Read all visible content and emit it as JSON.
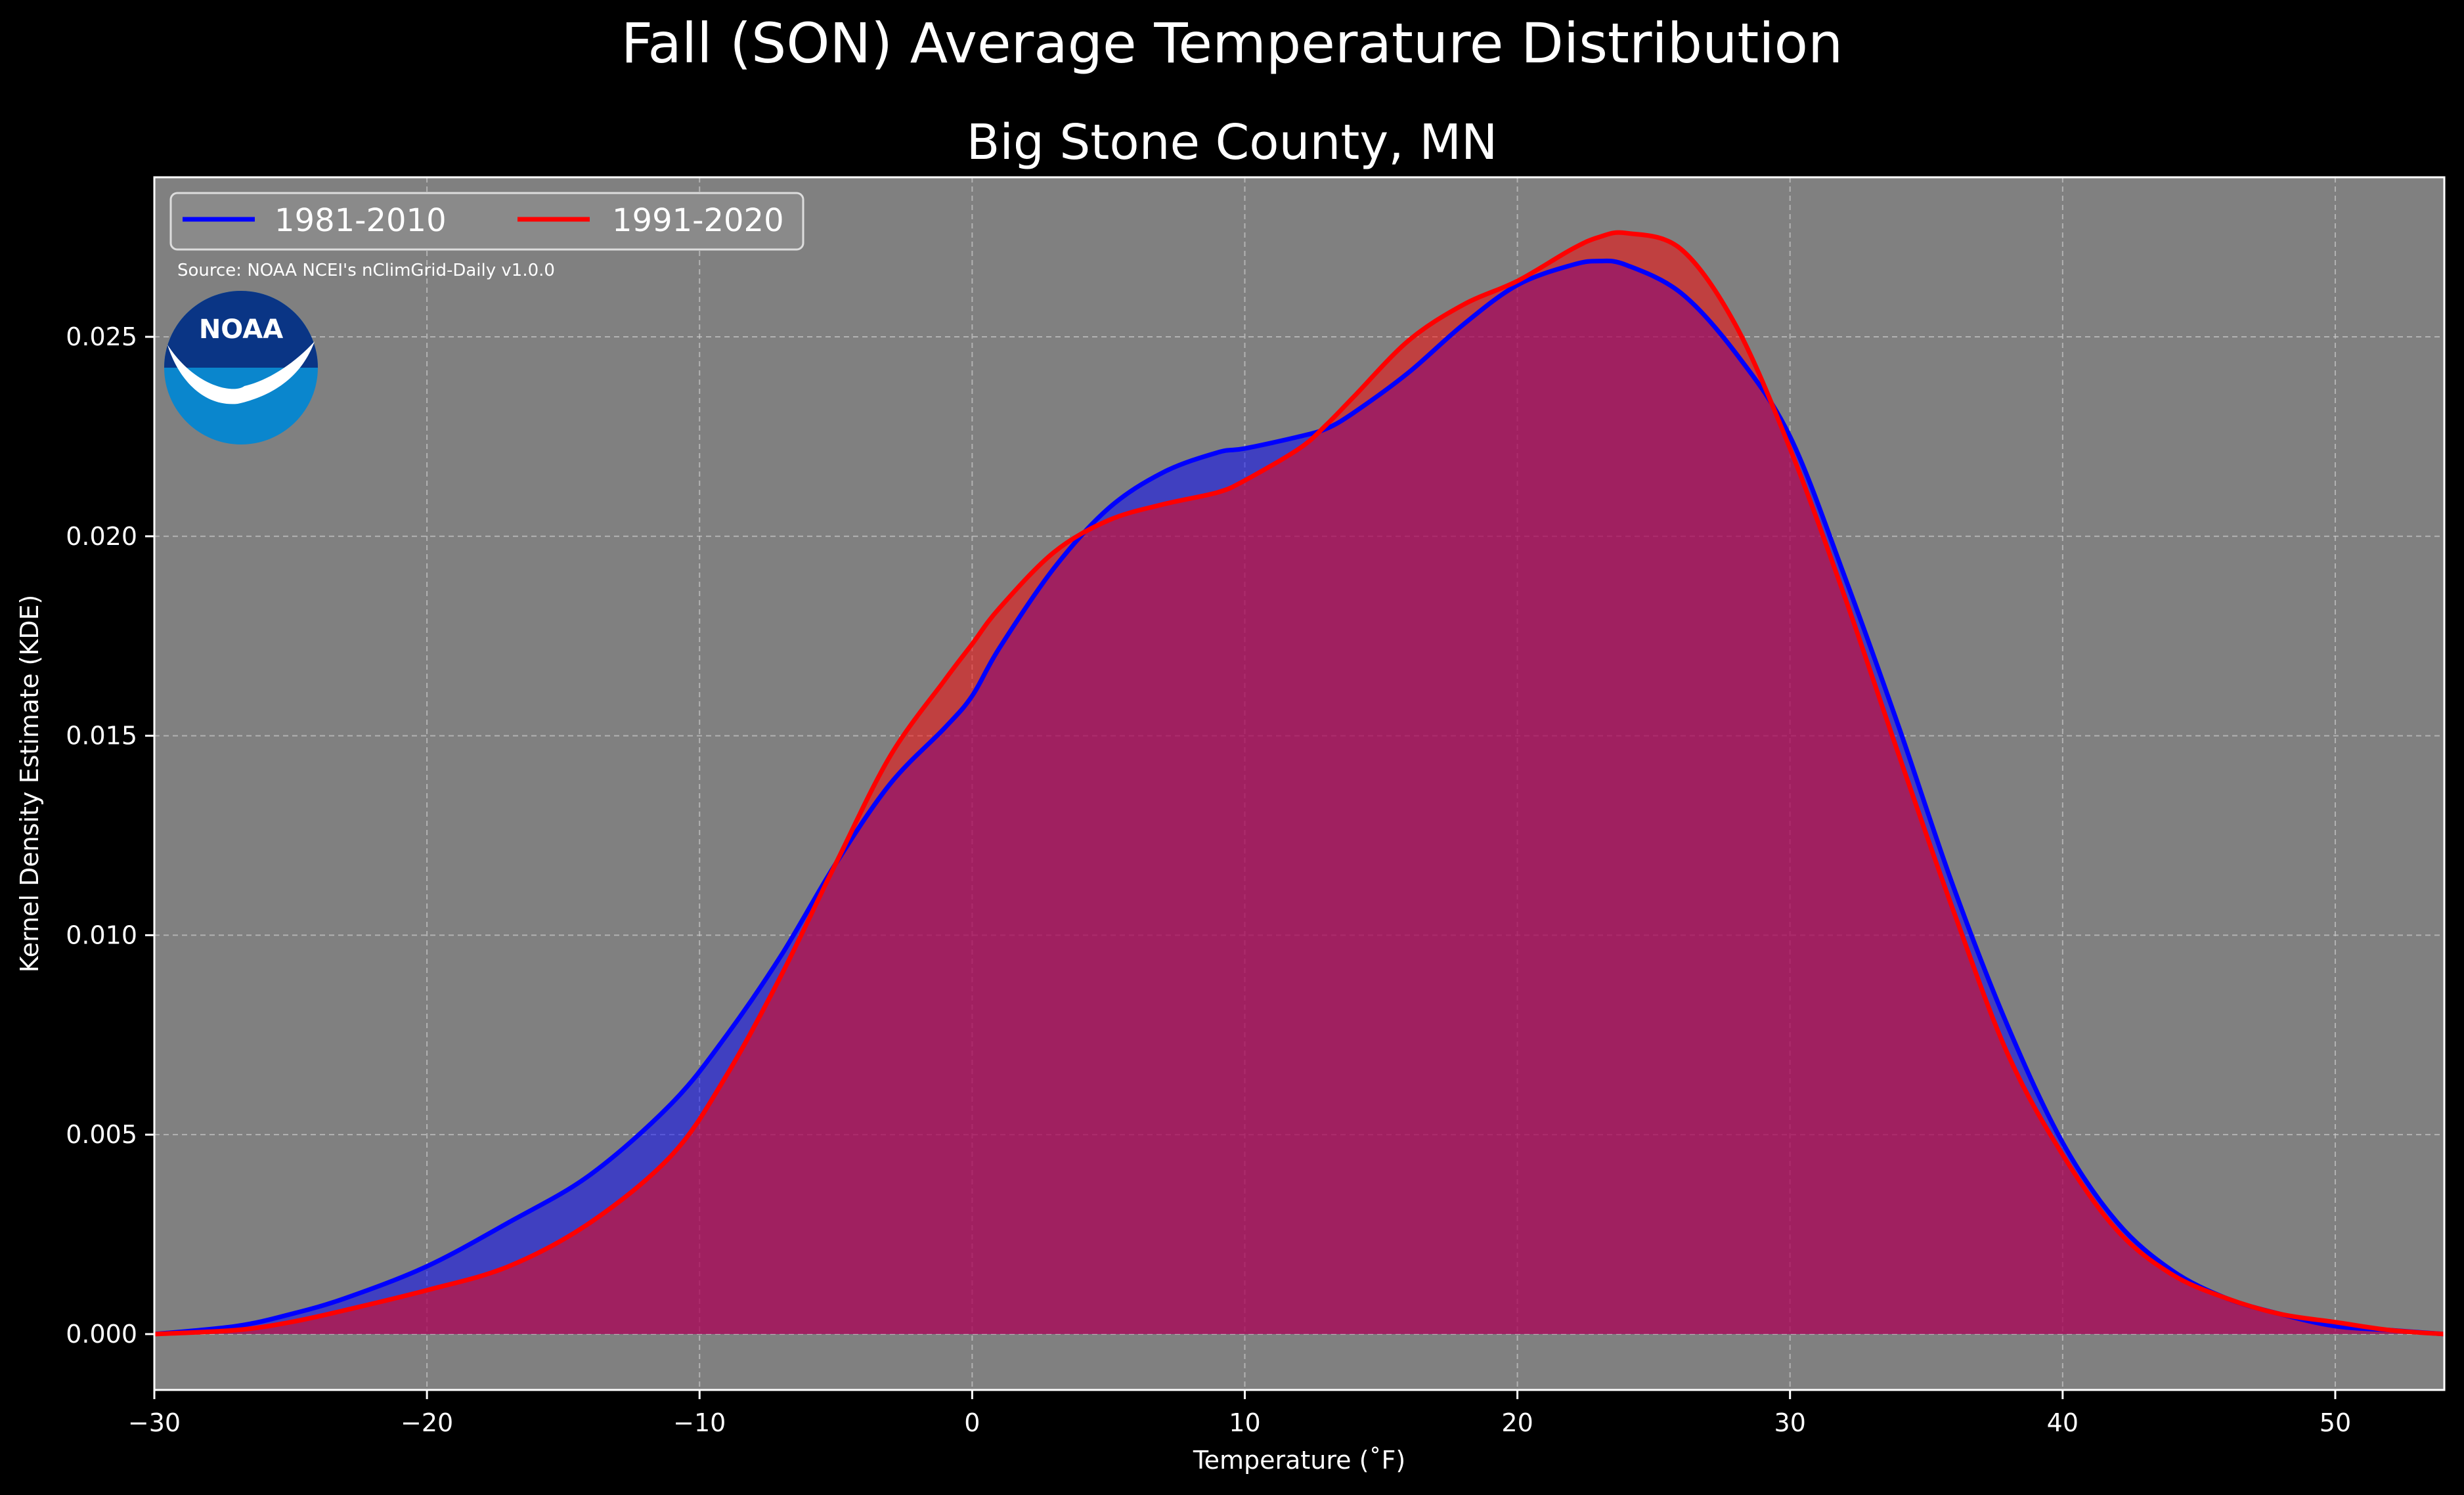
{
  "suptitle": "Fall (SON) Average Temperature Distribution",
  "chart_data": {
    "type": "area",
    "title": "Big Stone County, MN",
    "xlabel": "Temperature (˚F)",
    "ylabel": "Kernel Density Estimate (KDE)",
    "xlim": [
      -30,
      54
    ],
    "ylim": [
      -0.0014,
      0.029
    ],
    "xticks": [
      -30,
      -20,
      -10,
      0,
      10,
      20,
      30,
      40,
      50
    ],
    "xtick_labels": [
      "−30",
      "−20",
      "−10",
      "0",
      "10",
      "20",
      "30",
      "40",
      "50"
    ],
    "yticks": [
      0.0,
      0.005,
      0.01,
      0.015,
      0.02,
      0.025
    ],
    "ytick_labels": [
      "0.000",
      "0.005",
      "0.010",
      "0.015",
      "0.020",
      "0.025"
    ],
    "grid": true,
    "legend_position": "top-left",
    "annotation": "Source: NOAA NCEI's nClimGrid-Daily v1.0.0",
    "logo_text": "NOAA",
    "colors": {
      "figure_bg": "#000000",
      "axes_bg": "#808080",
      "series_1": "#0000ff",
      "series_2": "#ff0000",
      "logo_dark": "#0a3585",
      "logo_light": "#0a86cd"
    },
    "series": [
      {
        "name": "1981-2010",
        "color": "#0000ff",
        "x": [
          -30,
          -27,
          -25,
          -23,
          -20,
          -17,
          -14,
          -11,
          -9,
          -7,
          -5,
          -3,
          -1,
          0,
          1,
          3,
          5,
          7,
          9,
          10,
          12,
          13,
          14,
          16,
          18,
          20,
          22,
          23,
          24,
          26,
          28,
          30,
          32,
          34,
          36,
          38,
          40,
          42,
          44,
          46,
          48,
          50,
          52,
          54
        ],
        "y": [
          0.0,
          0.0002,
          0.0005,
          0.0009,
          0.0017,
          0.0028,
          0.004,
          0.0058,
          0.0075,
          0.0095,
          0.0118,
          0.0138,
          0.0152,
          0.016,
          0.0172,
          0.0192,
          0.0207,
          0.0216,
          0.0221,
          0.0222,
          0.0225,
          0.0227,
          0.0231,
          0.0241,
          0.0253,
          0.0263,
          0.0268,
          0.0269,
          0.0268,
          0.0261,
          0.0246,
          0.0225,
          0.019,
          0.0152,
          0.0112,
          0.0077,
          0.0048,
          0.0028,
          0.0016,
          0.0009,
          0.0005,
          0.0002,
          0.0001,
          0.0
        ]
      },
      {
        "name": "1991-2020",
        "color": "#ff0000",
        "x": [
          -30,
          -27,
          -25,
          -23,
          -20,
          -17,
          -14,
          -11,
          -9,
          -7,
          -5,
          -3,
          -1,
          0,
          1,
          3,
          5,
          7,
          9,
          10,
          12,
          13,
          14,
          16,
          18,
          20,
          22,
          23,
          24,
          26,
          28,
          30,
          32,
          34,
          36,
          38,
          40,
          42,
          44,
          46,
          48,
          50,
          52,
          54
        ],
        "y": [
          0.0,
          0.0001,
          0.0003,
          0.0006,
          0.0011,
          0.0017,
          0.0028,
          0.0045,
          0.0065,
          0.009,
          0.0118,
          0.0145,
          0.0164,
          0.0173,
          0.0182,
          0.0196,
          0.0204,
          0.0208,
          0.0211,
          0.0214,
          0.0222,
          0.0228,
          0.0235,
          0.0249,
          0.0258,
          0.0264,
          0.0272,
          0.0275,
          0.0276,
          0.0272,
          0.0253,
          0.0222,
          0.0185,
          0.0145,
          0.0106,
          0.007,
          0.0045,
          0.0026,
          0.0015,
          0.0009,
          0.0005,
          0.0003,
          0.0001,
          0.0
        ]
      }
    ]
  }
}
